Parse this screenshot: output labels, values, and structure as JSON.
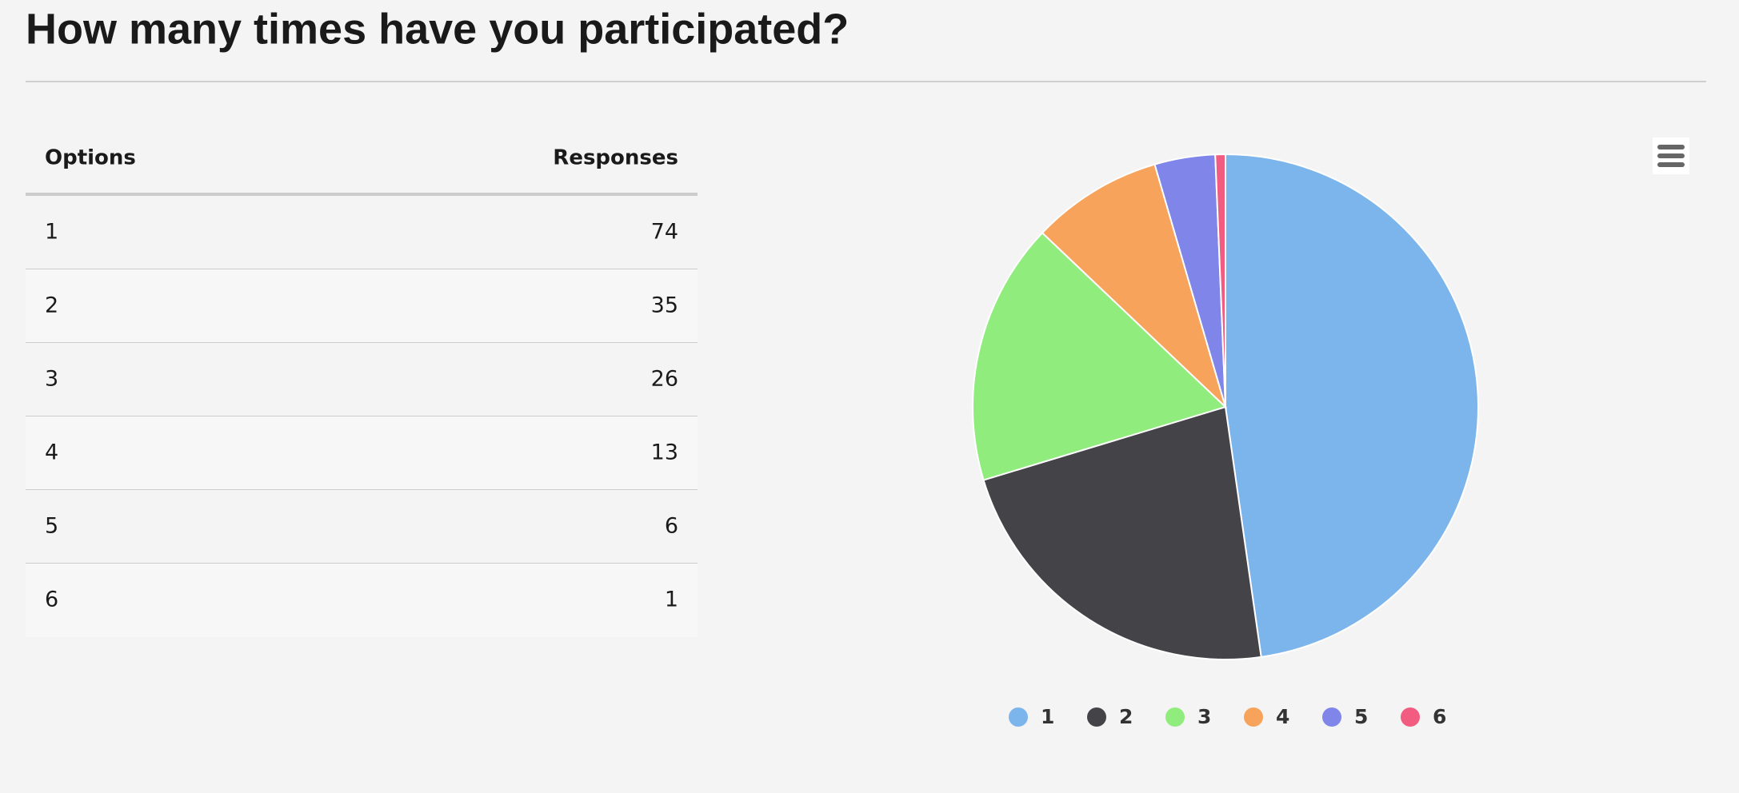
{
  "title": "How many times have you participated?",
  "table": {
    "headers": [
      "Options",
      "Responses"
    ]
  },
  "chart_data": {
    "type": "pie",
    "categories": [
      "1",
      "2",
      "3",
      "4",
      "5",
      "6"
    ],
    "values": [
      74,
      35,
      26,
      13,
      6,
      1
    ],
    "colors": [
      "#7cb5ec",
      "#434348",
      "#90ed7d",
      "#f7a35c",
      "#8085e9",
      "#f15c80"
    ],
    "legend": "bottom"
  }
}
